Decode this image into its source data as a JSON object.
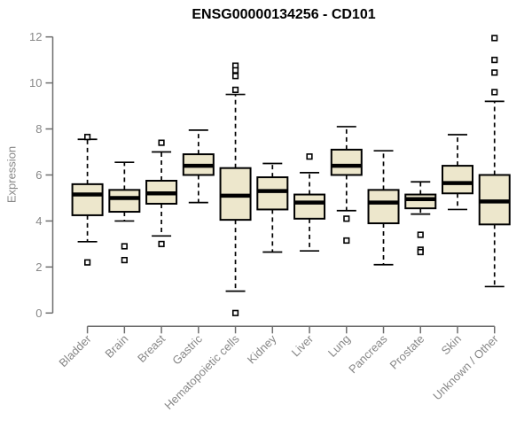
{
  "chart_data": {
    "type": "boxplot",
    "title": "ENSG00000134256 - CD101",
    "ylabel": "Expression",
    "xlabel": "",
    "ylim": [
      0,
      12
    ],
    "yticks": [
      0,
      2,
      4,
      6,
      8,
      10,
      12
    ],
    "grid": false,
    "legend": false,
    "categories": [
      "Bladder",
      "Brain",
      "Breast",
      "Gastric",
      "Hematopoietic cells",
      "Kidney",
      "Liver",
      "Lung",
      "Pancreas",
      "Prostate",
      "Skin",
      "Unknown / Other"
    ],
    "boxes": [
      {
        "label": "Bladder",
        "whislo": 3.1,
        "q1": 4.25,
        "med": 5.15,
        "q3": 5.6,
        "whishi": 7.55,
        "outliers": [
          7.65,
          2.2
        ]
      },
      {
        "label": "Brain",
        "whislo": 4.0,
        "q1": 4.4,
        "med": 5.0,
        "q3": 5.35,
        "whishi": 6.55,
        "outliers": [
          2.9,
          2.3
        ]
      },
      {
        "label": "Breast",
        "whislo": 3.35,
        "q1": 4.75,
        "med": 5.2,
        "q3": 5.75,
        "whishi": 7.0,
        "outliers": [
          7.4,
          3.0
        ]
      },
      {
        "label": "Gastric",
        "whislo": 4.8,
        "q1": 6.0,
        "med": 6.4,
        "q3": 6.9,
        "whishi": 7.95,
        "outliers": []
      },
      {
        "label": "Hematopoietic cells",
        "whislo": 0.95,
        "q1": 4.05,
        "med": 5.1,
        "q3": 6.3,
        "whishi": 9.5,
        "outliers": [
          10.75,
          10.55,
          10.3,
          9.7,
          0.0
        ]
      },
      {
        "label": "Kidney",
        "whislo": 2.65,
        "q1": 4.5,
        "med": 5.3,
        "q3": 5.9,
        "whishi": 6.5,
        "outliers": []
      },
      {
        "label": "Liver",
        "whislo": 2.7,
        "q1": 4.1,
        "med": 4.8,
        "q3": 5.15,
        "whishi": 6.1,
        "outliers": [
          6.8
        ]
      },
      {
        "label": "Lung",
        "whislo": 4.45,
        "q1": 6.0,
        "med": 6.4,
        "q3": 7.1,
        "whishi": 8.1,
        "outliers": [
          4.1,
          3.15
        ]
      },
      {
        "label": "Pancreas",
        "whislo": 2.1,
        "q1": 3.9,
        "med": 4.8,
        "q3": 5.35,
        "whishi": 7.05,
        "outliers": []
      },
      {
        "label": "Prostate",
        "whislo": 4.3,
        "q1": 4.55,
        "med": 4.95,
        "q3": 5.15,
        "whishi": 5.7,
        "outliers": [
          3.4,
          2.75,
          2.65
        ]
      },
      {
        "label": "Skin",
        "whislo": 4.5,
        "q1": 5.2,
        "med": 5.65,
        "q3": 6.4,
        "whishi": 7.75,
        "outliers": []
      },
      {
        "label": "Unknown / Other",
        "whislo": 1.15,
        "q1": 3.85,
        "med": 4.85,
        "q3": 6.0,
        "whishi": 9.2,
        "outliers": [
          11.95,
          11.0,
          10.45,
          9.6
        ]
      }
    ],
    "colors": {
      "box_fill": "#ede7cc",
      "box_stroke": "#000000",
      "median": "#000000",
      "whisker": "#000000",
      "outlier_stroke": "#000000",
      "outlier_fill": "#ffffff",
      "axis_line": "#6e6e6e",
      "tick_text": "#878787",
      "title_text": "#000000"
    }
  }
}
